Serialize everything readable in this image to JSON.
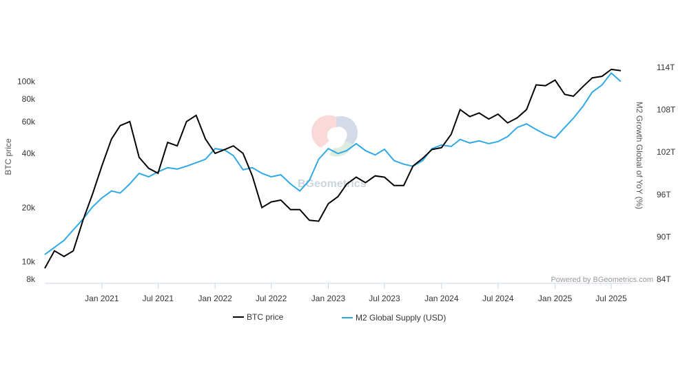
{
  "chart_data": {
    "type": "line",
    "title": "",
    "credit": "Powered by BGeometrics.com",
    "watermark": "BGeometrics",
    "xlabel": "",
    "x_ticks": [
      "Jan 2021",
      "Jul 2021",
      "Jan 2022",
      "Jul 2022",
      "Jan 2023",
      "Jul 2023",
      "Jan 2024",
      "Jul 2024",
      "Jan 2025",
      "Jul 2025"
    ],
    "x_tick_dates": [
      "2021-01-01",
      "2021-07-01",
      "2022-01-01",
      "2022-07-01",
      "2023-01-01",
      "2023-07-01",
      "2024-01-01",
      "2024-07-01",
      "2025-01-01",
      "2025-07-01"
    ],
    "x_range": [
      "2020-07-01",
      "2025-09-01"
    ],
    "y_left": {
      "title": "BTC price",
      "scale": "log",
      "range": [
        8000,
        120000
      ],
      "ticks": [
        8000,
        10000,
        20000,
        40000,
        60000,
        80000,
        100000
      ],
      "tick_labels": [
        "8k",
        "10k",
        "20k",
        "40k",
        "60k",
        "80k",
        "100k"
      ]
    },
    "y_right": {
      "title": "M2 Growth Global of YoY (%)",
      "range": [
        84,
        114
      ],
      "ticks": [
        84,
        90,
        96,
        102,
        108,
        114
      ],
      "tick_labels": [
        "84T",
        "90T",
        "96T",
        "102T",
        "108T",
        "114T"
      ]
    },
    "legend": {
      "placement": "bottom-center"
    },
    "grid": false,
    "series": [
      {
        "name": "BTC price",
        "axis": "left",
        "color": "#000000",
        "points": [
          [
            "2020-07-01",
            9200
          ],
          [
            "2020-08-01",
            11500
          ],
          [
            "2020-09-01",
            10700
          ],
          [
            "2020-10-01",
            11500
          ],
          [
            "2020-11-01",
            17000
          ],
          [
            "2020-12-01",
            23500
          ],
          [
            "2021-01-01",
            34000
          ],
          [
            "2021-02-01",
            48000
          ],
          [
            "2021-03-01",
            57000
          ],
          [
            "2021-04-01",
            60000
          ],
          [
            "2021-05-01",
            38000
          ],
          [
            "2021-06-01",
            33000
          ],
          [
            "2021-07-01",
            31000
          ],
          [
            "2021-08-01",
            46000
          ],
          [
            "2021-09-01",
            44000
          ],
          [
            "2021-10-01",
            60000
          ],
          [
            "2021-11-01",
            65000
          ],
          [
            "2021-12-01",
            48000
          ],
          [
            "2022-01-01",
            40000
          ],
          [
            "2022-02-01",
            42000
          ],
          [
            "2022-03-01",
            44000
          ],
          [
            "2022-04-01",
            40000
          ],
          [
            "2022-05-01",
            30000
          ],
          [
            "2022-06-01",
            20000
          ],
          [
            "2022-07-01",
            21500
          ],
          [
            "2022-08-01",
            22000
          ],
          [
            "2022-09-01",
            19500
          ],
          [
            "2022-10-01",
            19500
          ],
          [
            "2022-11-01",
            17000
          ],
          [
            "2022-12-01",
            16800
          ],
          [
            "2023-01-01",
            21000
          ],
          [
            "2023-02-01",
            23000
          ],
          [
            "2023-03-01",
            27000
          ],
          [
            "2023-04-01",
            29500
          ],
          [
            "2023-05-01",
            27500
          ],
          [
            "2023-06-01",
            30000
          ],
          [
            "2023-07-01",
            29500
          ],
          [
            "2023-08-01",
            26500
          ],
          [
            "2023-09-01",
            26500
          ],
          [
            "2023-10-01",
            34000
          ],
          [
            "2023-11-01",
            37500
          ],
          [
            "2023-12-01",
            42000
          ],
          [
            "2024-01-01",
            43000
          ],
          [
            "2024-02-01",
            51000
          ],
          [
            "2024-03-01",
            70000
          ],
          [
            "2024-04-01",
            64000
          ],
          [
            "2024-05-01",
            67000
          ],
          [
            "2024-06-01",
            62000
          ],
          [
            "2024-07-01",
            66000
          ],
          [
            "2024-08-01",
            59000
          ],
          [
            "2024-09-01",
            63000
          ],
          [
            "2024-10-01",
            70000
          ],
          [
            "2024-11-01",
            96000
          ],
          [
            "2024-12-01",
            95000
          ],
          [
            "2025-01-01",
            102000
          ],
          [
            "2025-02-01",
            85000
          ],
          [
            "2025-03-01",
            83000
          ],
          [
            "2025-04-01",
            94000
          ],
          [
            "2025-05-01",
            105000
          ],
          [
            "2025-06-01",
            107000
          ],
          [
            "2025-07-01",
            117000
          ],
          [
            "2025-08-01",
            115000
          ]
        ]
      },
      {
        "name": "M2 Global Supply (USD)",
        "axis": "right",
        "color": "#2ea8e6",
        "points": [
          [
            "2020-07-01",
            87.5
          ],
          [
            "2020-08-01",
            88.5
          ],
          [
            "2020-09-01",
            89.5
          ],
          [
            "2020-10-01",
            91.0
          ],
          [
            "2020-11-01",
            92.5
          ],
          [
            "2020-12-01",
            94.2
          ],
          [
            "2021-01-01",
            95.5
          ],
          [
            "2021-02-01",
            96.5
          ],
          [
            "2021-03-01",
            96.2
          ],
          [
            "2021-04-01",
            97.5
          ],
          [
            "2021-05-01",
            99.0
          ],
          [
            "2021-06-01",
            98.5
          ],
          [
            "2021-07-01",
            99.2
          ],
          [
            "2021-08-01",
            99.8
          ],
          [
            "2021-09-01",
            99.6
          ],
          [
            "2021-10-01",
            100.0
          ],
          [
            "2021-11-01",
            100.5
          ],
          [
            "2021-12-01",
            101.0
          ],
          [
            "2022-01-01",
            102.5
          ],
          [
            "2022-02-01",
            102.3
          ],
          [
            "2022-03-01",
            101.5
          ],
          [
            "2022-04-01",
            99.5
          ],
          [
            "2022-05-01",
            99.8
          ],
          [
            "2022-06-01",
            99.0
          ],
          [
            "2022-07-01",
            98.5
          ],
          [
            "2022-08-01",
            98.8
          ],
          [
            "2022-09-01",
            97.5
          ],
          [
            "2022-10-01",
            96.5
          ],
          [
            "2022-11-01",
            98.0
          ],
          [
            "2022-12-01",
            101.0
          ],
          [
            "2023-01-01",
            102.5
          ],
          [
            "2023-02-01",
            101.8
          ],
          [
            "2023-03-01",
            102.2
          ],
          [
            "2023-04-01",
            103.2
          ],
          [
            "2023-05-01",
            102.2
          ],
          [
            "2023-06-01",
            101.6
          ],
          [
            "2023-07-01",
            102.4
          ],
          [
            "2023-08-01",
            100.8
          ],
          [
            "2023-09-01",
            100.3
          ],
          [
            "2023-10-01",
            100.0
          ],
          [
            "2023-11-01",
            100.8
          ],
          [
            "2023-12-01",
            102.5
          ],
          [
            "2024-01-01",
            103.0
          ],
          [
            "2024-02-01",
            102.8
          ],
          [
            "2024-03-01",
            103.8
          ],
          [
            "2024-04-01",
            103.3
          ],
          [
            "2024-05-01",
            103.6
          ],
          [
            "2024-06-01",
            103.2
          ],
          [
            "2024-07-01",
            103.5
          ],
          [
            "2024-08-01",
            104.2
          ],
          [
            "2024-09-01",
            105.5
          ],
          [
            "2024-10-01",
            106.0
          ],
          [
            "2024-11-01",
            105.2
          ],
          [
            "2024-12-01",
            104.5
          ],
          [
            "2025-01-01",
            104.0
          ],
          [
            "2025-02-01",
            105.5
          ],
          [
            "2025-03-01",
            106.8
          ],
          [
            "2025-04-01",
            108.5
          ],
          [
            "2025-05-01",
            110.5
          ],
          [
            "2025-06-01",
            111.5
          ],
          [
            "2025-07-01",
            113.2
          ],
          [
            "2025-08-01",
            112.0
          ]
        ]
      }
    ]
  }
}
